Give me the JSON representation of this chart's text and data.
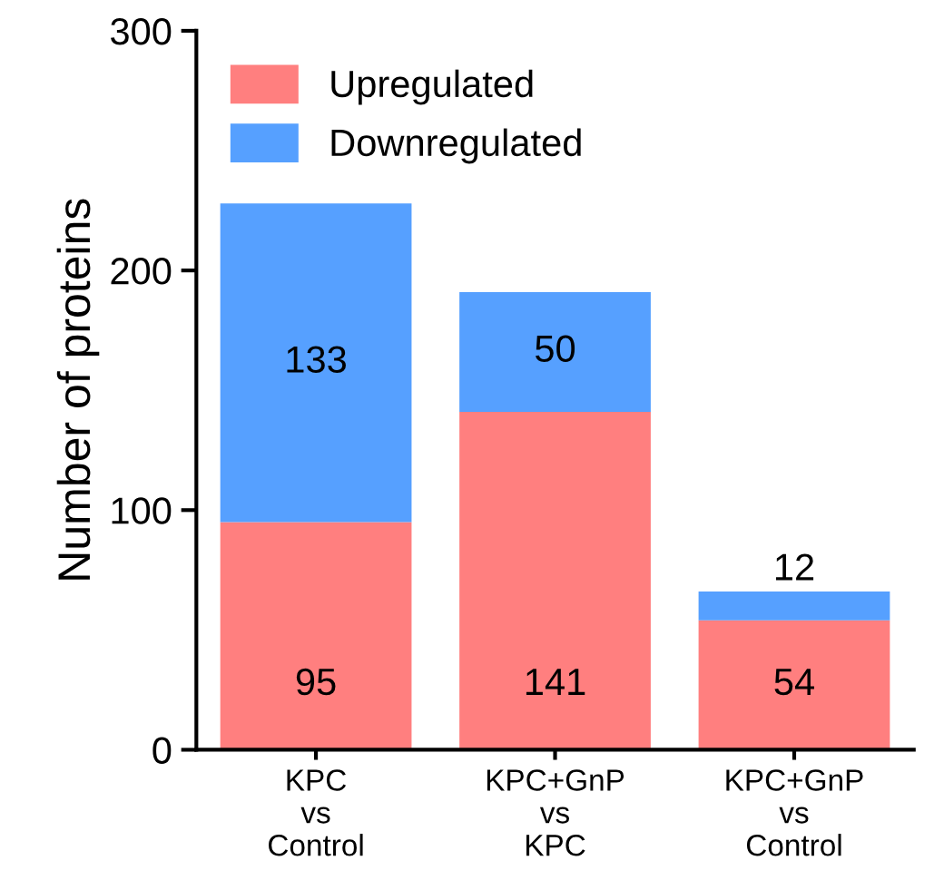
{
  "chart_data": {
    "type": "bar",
    "stacked": true,
    "ylabel": "Number of proteins",
    "categories": [
      "KPC\nvs\nControl",
      "KPC+GnP\nvs\nKPC",
      "KPC+GnP\nvs\nControl"
    ],
    "series": [
      {
        "name": "Upregulated",
        "color": "#ff7f7f",
        "values": [
          95,
          141,
          54
        ]
      },
      {
        "name": "Downregulated",
        "color": "#56a0ff",
        "values": [
          133,
          50,
          12
        ]
      }
    ],
    "ylim": [
      0,
      300
    ],
    "yticks": [
      0,
      100,
      200,
      300
    ],
    "grid": false,
    "legend": "top left",
    "data_labels": true
  }
}
